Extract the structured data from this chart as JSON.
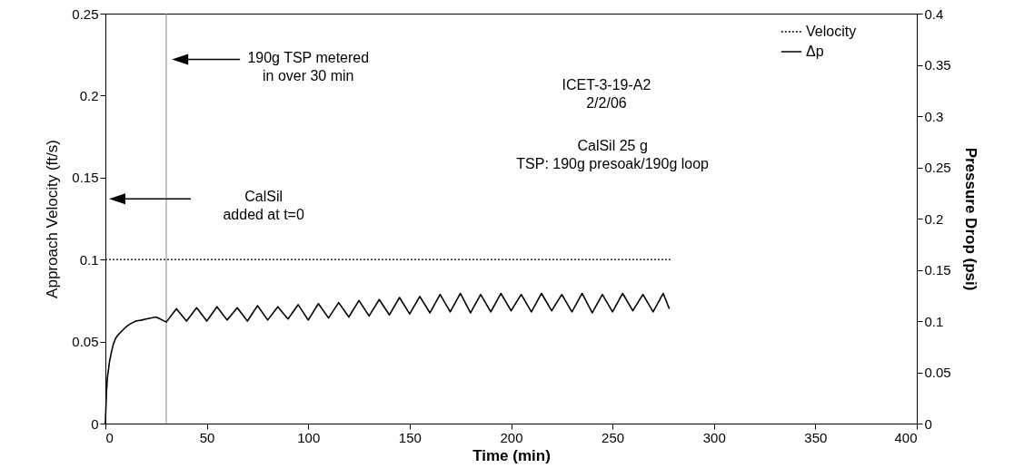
{
  "chart_data": {
    "type": "line",
    "xlabel": "Time (min)",
    "ylabel": "Approach Velocity (ft/s)",
    "y2label": "Pressure Drop (psi)",
    "xlim": [
      0,
      400
    ],
    "xticks": [
      0,
      50,
      100,
      150,
      200,
      250,
      300,
      350,
      400
    ],
    "ylim": [
      0,
      0.25
    ],
    "yticks": [
      0,
      0.05,
      0.1,
      0.15,
      0.2,
      0.25
    ],
    "y2lim": [
      0,
      0.4
    ],
    "y2ticks": [
      0,
      0.05,
      0.1,
      0.15,
      0.2,
      0.25,
      0.3,
      0.35,
      0.4
    ],
    "legend": "top right",
    "grid": false,
    "series": [
      {
        "name": "Velocity",
        "color": "#000000",
        "line_style": "dotted",
        "x": [
          0,
          20,
          40,
          60,
          80,
          100,
          120,
          140,
          160,
          180,
          200,
          220,
          240,
          260,
          279
        ],
        "values": [
          0.1,
          0.1,
          0.1,
          0.1,
          0.1,
          0.1,
          0.1,
          0.1,
          0.1,
          0.1,
          0.1,
          0.1,
          0.1,
          0.1,
          0.1
        ]
      },
      {
        "name": "Δp",
        "color": "#000000",
        "line_style": "solid",
        "axis": "y2",
        "x": [
          0,
          0.5,
          1,
          2,
          3,
          4,
          5,
          6,
          8,
          10,
          12,
          15,
          18,
          20,
          25,
          30,
          35,
          40,
          45,
          50,
          55,
          60,
          65,
          70,
          75,
          80,
          85,
          90,
          95,
          100,
          105,
          110,
          115,
          120,
          125,
          130,
          135,
          140,
          145,
          150,
          155,
          160,
          165,
          170,
          175,
          180,
          185,
          190,
          195,
          200,
          205,
          210,
          215,
          220,
          225,
          230,
          235,
          240,
          245,
          250,
          255,
          260,
          265,
          270,
          275,
          278
        ],
        "values": [
          0,
          0.03,
          0.045,
          0.06,
          0.07,
          0.078,
          0.083,
          0.086,
          0.09,
          0.094,
          0.097,
          0.1,
          0.101,
          0.102,
          0.104,
          0.099,
          0.112,
          0.1,
          0.113,
          0.1,
          0.114,
          0.101,
          0.113,
          0.1,
          0.115,
          0.101,
          0.114,
          0.102,
          0.116,
          0.101,
          0.117,
          0.103,
          0.118,
          0.104,
          0.12,
          0.105,
          0.121,
          0.106,
          0.123,
          0.107,
          0.124,
          0.108,
          0.126,
          0.109,
          0.127,
          0.108,
          0.126,
          0.109,
          0.127,
          0.11,
          0.126,
          0.109,
          0.127,
          0.11,
          0.126,
          0.109,
          0.127,
          0.108,
          0.126,
          0.109,
          0.127,
          0.11,
          0.126,
          0.109,
          0.127,
          0.112
        ]
      }
    ],
    "ref_lines": [
      {
        "axis": "x",
        "value": 30,
        "color": "#888888"
      }
    ],
    "annotations": [
      "190g TSP metered\nin over 30 min",
      "CalSil\nadded at t=0",
      "ICET-3-19-A2\n2/2/06",
      "CalSil 25 g\nTSP: 190g presoak/190g loop"
    ]
  }
}
